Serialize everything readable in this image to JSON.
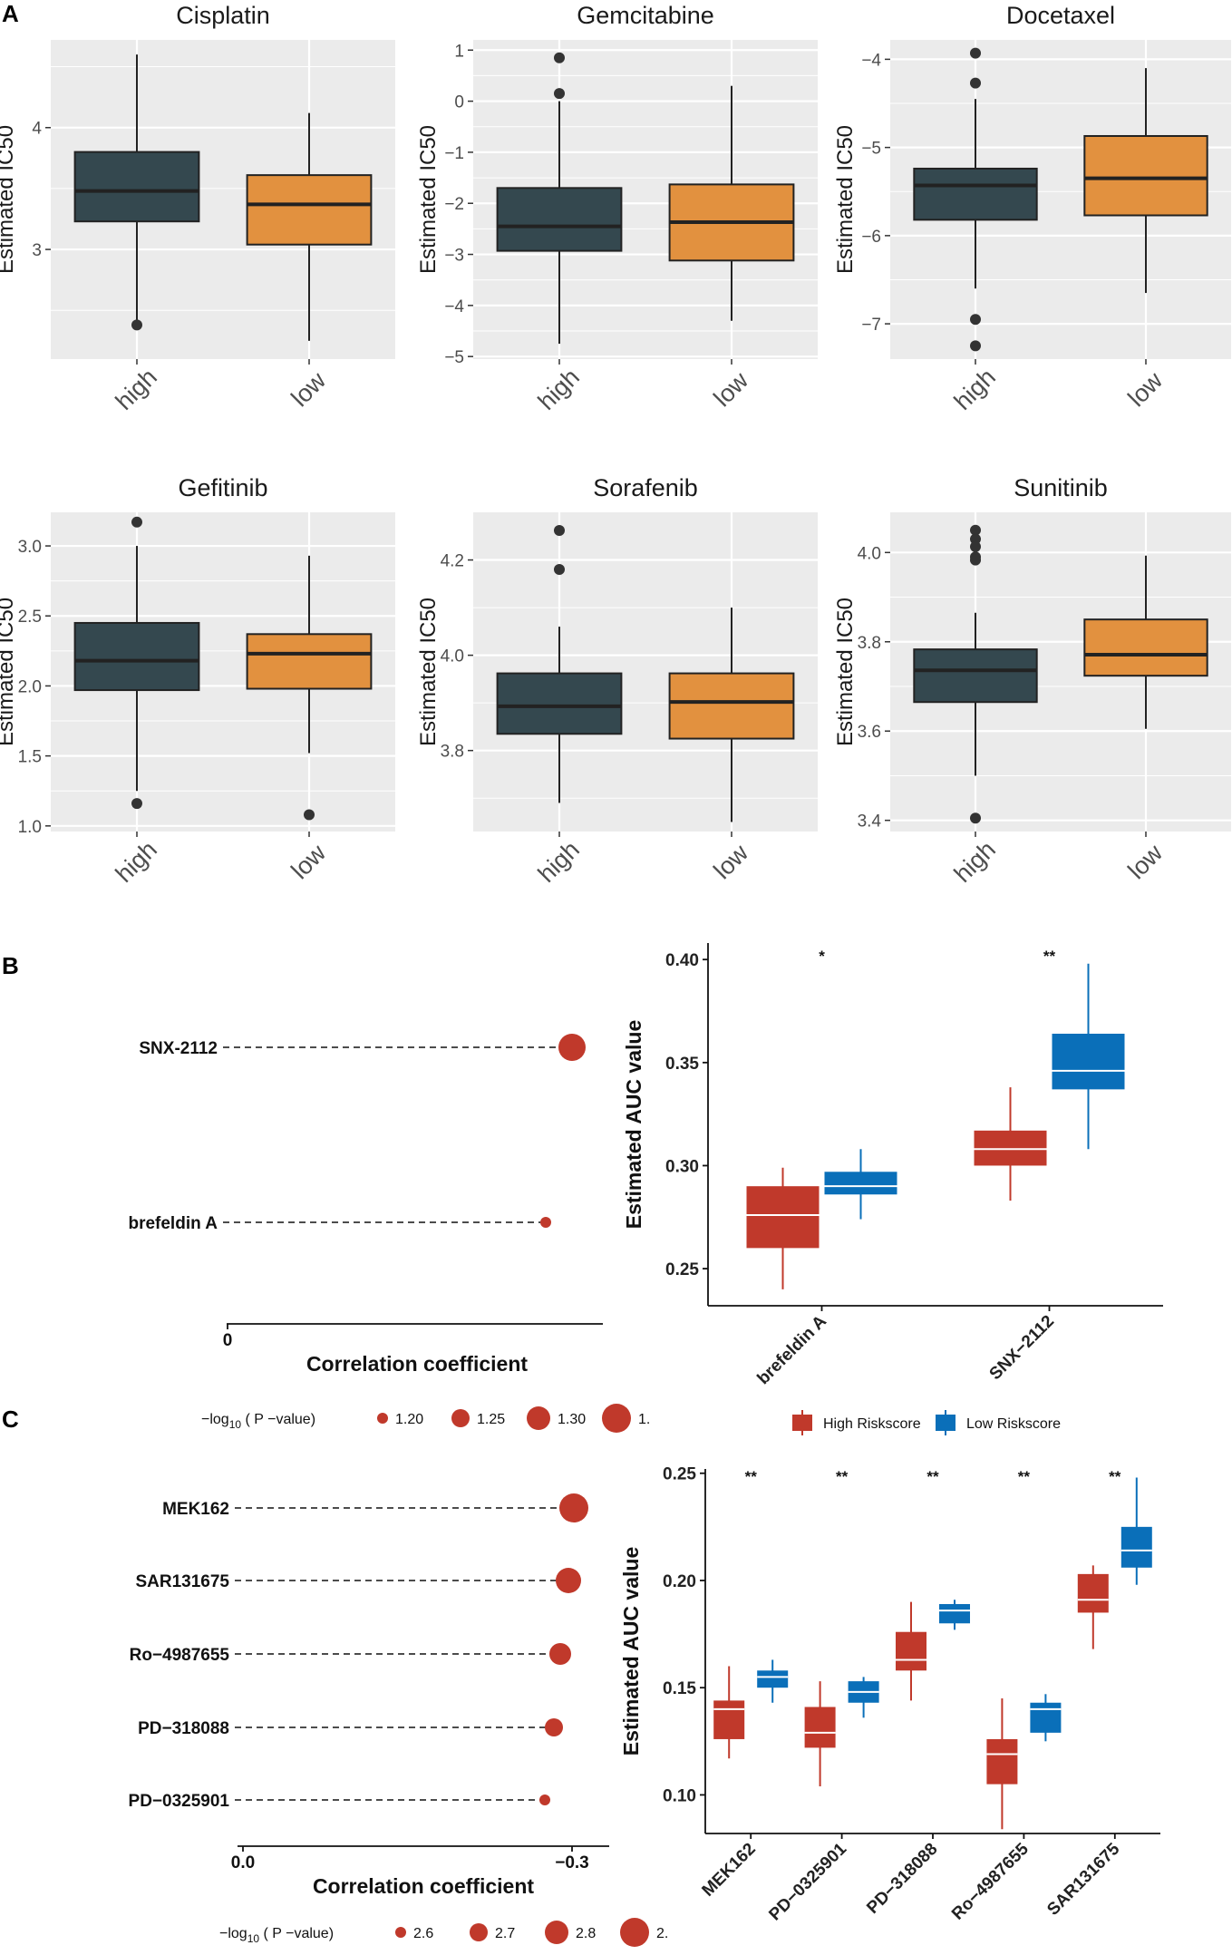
{
  "panel_labels": {
    "A": "A",
    "B": "B",
    "C": "C"
  },
  "colors": {
    "high_box": "#34484f",
    "low_box": "#e2913f",
    "panel_bg": "#ebebeb",
    "grid": "#ffffff",
    "lollipop": "#c0392b",
    "high_risk": "#c0392b",
    "low_risk": "#0a6fb9"
  },
  "chart_data": [
    {
      "id": "cisplatin",
      "type": "box",
      "title": "Cisplatin",
      "ylabel": "Estimated IC50",
      "categories": [
        "high",
        "low"
      ],
      "ylim": [
        2.1,
        4.72
      ],
      "yticks": [
        3,
        4
      ],
      "minor": [
        2.5,
        3.5,
        4.5
      ],
      "boxes": [
        {
          "group": "high",
          "min": 2.4,
          "q1": 3.23,
          "median": 3.48,
          "q3": 3.8,
          "max": 4.6,
          "outliers": [
            2.38
          ]
        },
        {
          "group": "low",
          "min": 2.25,
          "q1": 3.04,
          "median": 3.37,
          "q3": 3.61,
          "max": 4.12,
          "outliers": []
        }
      ]
    },
    {
      "id": "gemcitabine",
      "type": "box",
      "title": "Gemcitabine",
      "ylabel": "Estimated IC50",
      "categories": [
        "high",
        "low"
      ],
      "ylim": [
        -5.05,
        1.2
      ],
      "yticks": [
        -5,
        -4,
        -3,
        -2,
        -1,
        0,
        1
      ],
      "minor": [
        -4.5,
        -3.5,
        -2.5,
        -1.5,
        -0.5,
        0.5
      ],
      "boxes": [
        {
          "group": "high",
          "min": -4.75,
          "q1": -2.93,
          "median": -2.45,
          "q3": -1.7,
          "max": 0.0,
          "outliers": [
            0.85,
            0.15
          ]
        },
        {
          "group": "low",
          "min": -4.3,
          "q1": -3.12,
          "median": -2.37,
          "q3": -1.63,
          "max": 0.3,
          "outliers": []
        }
      ]
    },
    {
      "id": "docetaxel",
      "type": "box",
      "title": "Docetaxel",
      "ylabel": "Estimated IC50",
      "categories": [
        "high",
        "low"
      ],
      "ylim": [
        -7.4,
        -3.78
      ],
      "yticks": [
        -7,
        -6,
        -5,
        -4
      ],
      "minor": [
        -6.5,
        -5.5,
        -4.5
      ],
      "boxes": [
        {
          "group": "high",
          "min": -6.6,
          "q1": -5.82,
          "median": -5.43,
          "q3": -5.24,
          "max": -4.45,
          "outliers": [
            -3.93,
            -4.27,
            -6.95,
            -7.25
          ]
        },
        {
          "group": "low",
          "min": -6.65,
          "q1": -5.77,
          "median": -5.35,
          "q3": -4.87,
          "max": -4.1,
          "outliers": []
        }
      ]
    },
    {
      "id": "gefitinib",
      "type": "box",
      "title": "Gefitinib",
      "ylabel": "Estimated IC50",
      "categories": [
        "high",
        "low"
      ],
      "ylim": [
        0.96,
        3.24
      ],
      "yticks": [
        1.0,
        1.5,
        2.0,
        2.5,
        3.0
      ],
      "minor": [
        1.25,
        1.75,
        2.25,
        2.75
      ],
      "boxes": [
        {
          "group": "high",
          "min": 1.25,
          "q1": 1.97,
          "median": 2.18,
          "q3": 2.45,
          "max": 3.0,
          "outliers": [
            3.17,
            1.16
          ]
        },
        {
          "group": "low",
          "min": 1.52,
          "q1": 1.98,
          "median": 2.23,
          "q3": 2.37,
          "max": 2.93,
          "outliers": [
            1.08
          ]
        }
      ]
    },
    {
      "id": "sorafenib",
      "type": "box",
      "title": "Sorafenib",
      "ylabel": "Estimated IC50",
      "categories": [
        "high",
        "low"
      ],
      "ylim": [
        3.63,
        4.3
      ],
      "yticks": [
        3.8,
        4.0,
        4.2
      ],
      "minor": [
        3.7,
        3.9,
        4.1
      ],
      "boxes": [
        {
          "group": "high",
          "min": 3.69,
          "q1": 3.835,
          "median": 3.893,
          "q3": 3.962,
          "max": 4.06,
          "outliers": [
            4.262,
            4.18
          ]
        },
        {
          "group": "low",
          "min": 3.65,
          "q1": 3.825,
          "median": 3.902,
          "q3": 3.962,
          "max": 4.1,
          "outliers": []
        }
      ]
    },
    {
      "id": "sunitinib",
      "type": "box",
      "title": "Sunitinib",
      "ylabel": "Estimated IC50",
      "categories": [
        "high",
        "low"
      ],
      "ylim": [
        3.375,
        4.09
      ],
      "yticks": [
        3.4,
        3.6,
        3.8,
        4.0
      ],
      "minor": [
        3.5,
        3.7,
        3.9
      ],
      "boxes": [
        {
          "group": "high",
          "min": 3.5,
          "q1": 3.665,
          "median": 3.736,
          "q3": 3.783,
          "max": 3.865,
          "outliers": [
            4.05,
            4.03,
            4.013,
            3.99,
            3.983,
            3.405
          ]
        },
        {
          "group": "low",
          "min": 3.605,
          "q1": 3.724,
          "median": 3.771,
          "q3": 3.85,
          "max": 3.993,
          "outliers": []
        }
      ]
    },
    {
      "id": "b_lollipop",
      "type": "lollipop",
      "xlabel": "Correlation coefficient",
      "xticks": [
        "0"
      ],
      "drugs": [
        "SNX-2112",
        "brefeldin A"
      ],
      "marker_order": "descending",
      "legend": {
        "title_pre": "−log",
        "title_sub": "10",
        "title_post": "( P −value)",
        "sizes": [
          "1.20",
          "1.25",
          "1.30",
          "1."
        ]
      }
    },
    {
      "id": "b_box",
      "type": "box",
      "ylabel": "Estimated AUC value",
      "categories": [
        "brefeldin A",
        "SNX−2112"
      ],
      "ylim": [
        0.232,
        0.408
      ],
      "yticks": [
        0.25,
        0.3,
        0.35,
        0.4
      ],
      "ytick_labels": [
        "0.25",
        "0.30",
        "0.35",
        "0.40"
      ],
      "significance": [
        "*",
        "**"
      ],
      "legend": [
        "High Riskscore",
        "Low Riskscore"
      ],
      "series": [
        {
          "name": "High Riskscore",
          "boxes": [
            {
              "min": 0.24,
              "q1": 0.26,
              "median": 0.276,
              "q3": 0.29,
              "max": 0.299
            },
            {
              "min": 0.283,
              "q1": 0.3,
              "median": 0.308,
              "q3": 0.317,
              "max": 0.338
            }
          ]
        },
        {
          "name": "Low Riskscore",
          "boxes": [
            {
              "min": 0.274,
              "q1": 0.286,
              "median": 0.29,
              "q3": 0.297,
              "max": 0.308
            },
            {
              "min": 0.308,
              "q1": 0.337,
              "median": 0.346,
              "q3": 0.364,
              "max": 0.398
            }
          ]
        }
      ]
    },
    {
      "id": "c_lollipop",
      "type": "lollipop",
      "xlabel": "Correlation coefficient",
      "xticks": [
        "0.0",
        "−0.3"
      ],
      "drugs": [
        "MEK162",
        "SAR131675",
        "Ro−4987655",
        "PD−318088",
        "PD−0325901"
      ],
      "marker_order": "descending",
      "legend": {
        "title_pre": "−log",
        "title_sub": "10",
        "title_post": "( P −value)",
        "sizes": [
          "2.6",
          "2.7",
          "2.8",
          "2."
        ]
      }
    },
    {
      "id": "c_box",
      "type": "box",
      "ylabel": "Estimated AUC value",
      "categories": [
        "MEK162",
        "PD−0325901",
        "PD−318088",
        "Ro−4987655",
        "SAR131675"
      ],
      "ylim": [
        0.082,
        0.252
      ],
      "yticks": [
        0.1,
        0.15,
        0.2,
        0.25
      ],
      "ytick_labels": [
        "0.10",
        "0.15",
        "0.20",
        "0.25"
      ],
      "significance": [
        "**",
        "**",
        "**",
        "**",
        "**"
      ],
      "legend": [
        "High Riskscore",
        "Low Riskscore"
      ],
      "series": [
        {
          "name": "High Riskscore",
          "boxes": [
            {
              "min": 0.117,
              "q1": 0.126,
              "median": 0.14,
              "q3": 0.144,
              "max": 0.16
            },
            {
              "min": 0.104,
              "q1": 0.122,
              "median": 0.129,
              "q3": 0.141,
              "max": 0.153
            },
            {
              "min": 0.144,
              "q1": 0.158,
              "median": 0.163,
              "q3": 0.176,
              "max": 0.19
            },
            {
              "min": 0.084,
              "q1": 0.105,
              "median": 0.119,
              "q3": 0.126,
              "max": 0.145
            },
            {
              "min": 0.168,
              "q1": 0.185,
              "median": 0.191,
              "q3": 0.203,
              "max": 0.207
            }
          ]
        },
        {
          "name": "Low Riskscore",
          "boxes": [
            {
              "min": 0.143,
              "q1": 0.15,
              "median": 0.155,
              "q3": 0.158,
              "max": 0.163
            },
            {
              "min": 0.136,
              "q1": 0.143,
              "median": 0.148,
              "q3": 0.153,
              "max": 0.155
            },
            {
              "min": 0.177,
              "q1": 0.18,
              "median": 0.186,
              "q3": 0.189,
              "max": 0.191
            },
            {
              "min": 0.125,
              "q1": 0.129,
              "median": 0.14,
              "q3": 0.143,
              "max": 0.147
            },
            {
              "min": 0.198,
              "q1": 0.206,
              "median": 0.214,
              "q3": 0.225,
              "max": 0.248
            }
          ]
        }
      ]
    }
  ]
}
